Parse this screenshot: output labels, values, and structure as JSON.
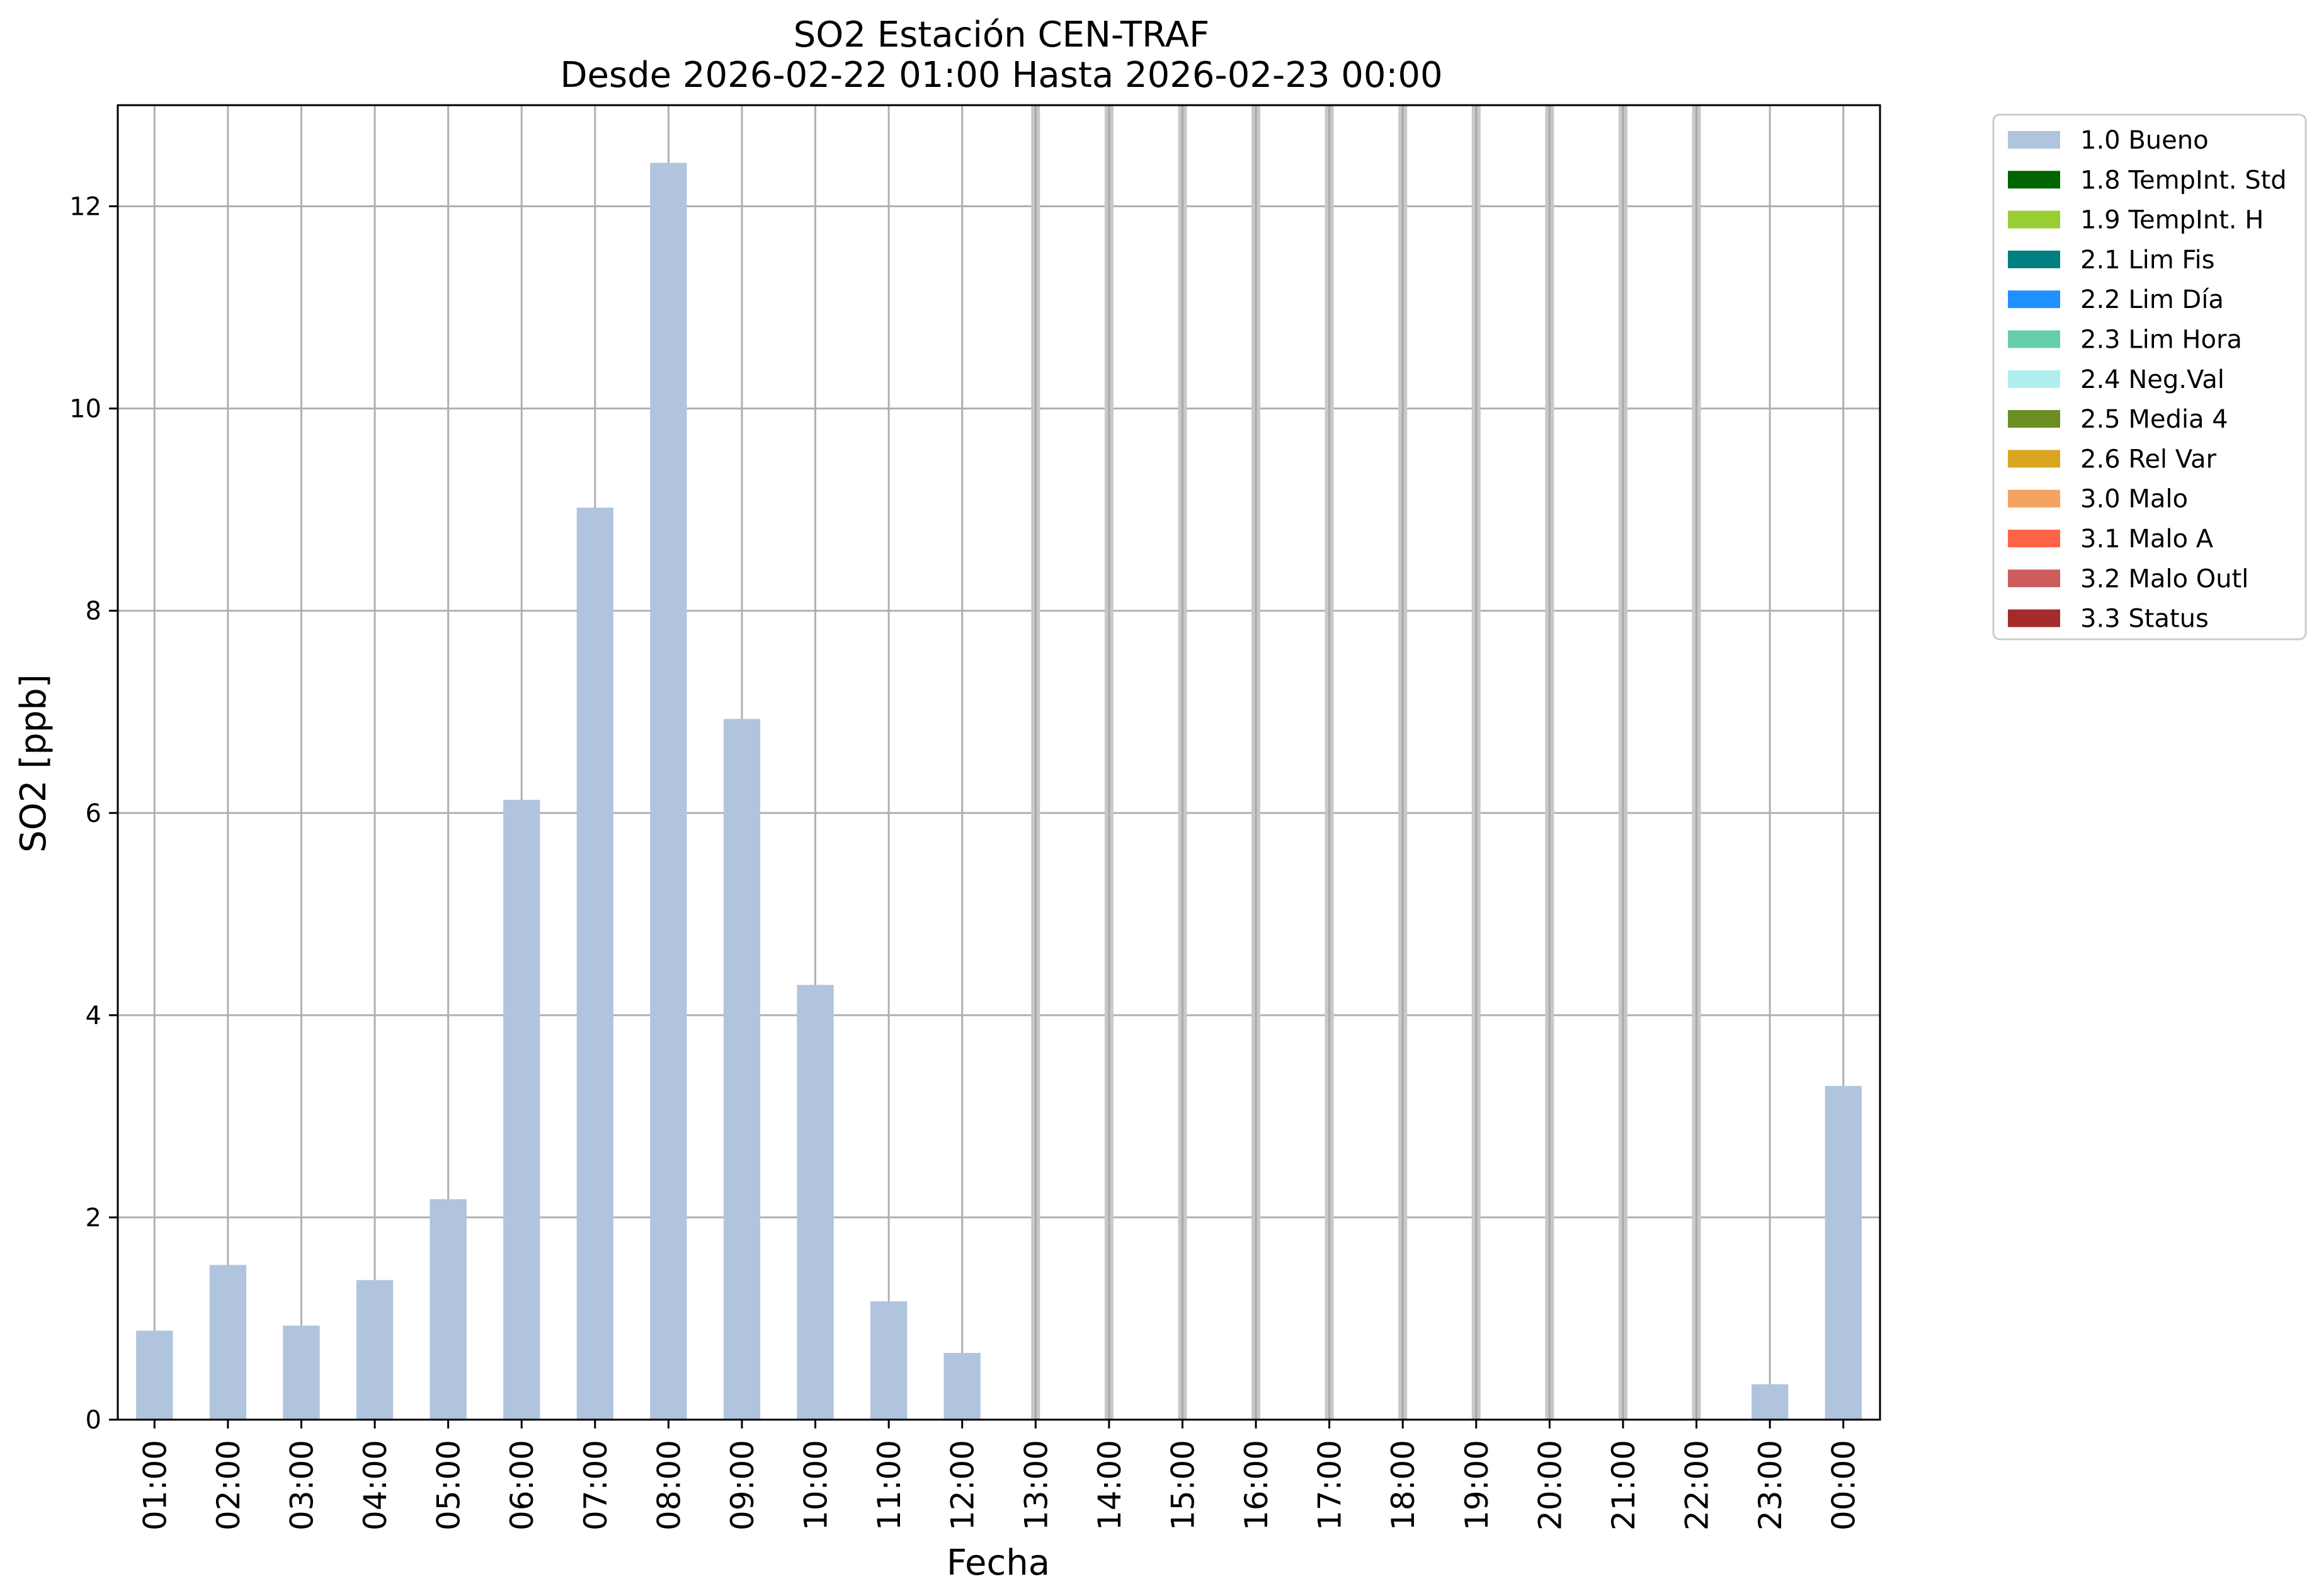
{
  "chart_data": {
    "type": "bar",
    "title": [
      "SO2 Estación CEN-TRAF",
      "Desde 2026-02-22 01:00 Hasta 2026-02-23 00:00"
    ],
    "xlabel": "Fecha",
    "ylabel": "SO2 [ppb]",
    "ylim": [
      0,
      13
    ],
    "yticks": [
      0,
      2,
      4,
      6,
      8,
      10,
      12
    ],
    "grid": true,
    "legend_position": "outside-top-right",
    "categories": [
      "01:00",
      "02:00",
      "03:00",
      "04:00",
      "05:00",
      "06:00",
      "07:00",
      "08:00",
      "09:00",
      "10:00",
      "11:00",
      "12:00",
      "13:00",
      "14:00",
      "15:00",
      "16:00",
      "17:00",
      "18:00",
      "19:00",
      "20:00",
      "21:00",
      "22:00",
      "23:00",
      "00:00"
    ],
    "values": [
      0.88,
      1.53,
      0.93,
      1.38,
      2.18,
      6.13,
      9.02,
      12.43,
      6.93,
      4.3,
      1.17,
      0.66,
      null,
      null,
      null,
      null,
      null,
      null,
      null,
      null,
      null,
      null,
      0.35,
      3.3
    ],
    "bar_color": "#b0c4de",
    "missing_marker_color": "#c8c8c8",
    "legend": [
      {
        "label": "1.0 Bueno",
        "color": "#b0c4de"
      },
      {
        "label": "1.8 TempInt. Std",
        "color": "#006400"
      },
      {
        "label": "1.9 TempInt. H",
        "color": "#9acd32"
      },
      {
        "label": "2.1 Lim Fis",
        "color": "#008080"
      },
      {
        "label": "2.2 Lim Día",
        "color": "#1e90ff"
      },
      {
        "label": "2.3 Lim Hora",
        "color": "#66cdaa"
      },
      {
        "label": "2.4 Neg.Val",
        "color": "#afeeee"
      },
      {
        "label": "2.5 Media 4",
        "color": "#6b8e23"
      },
      {
        "label": "2.6 Rel Var",
        "color": "#daa520"
      },
      {
        "label": "3.0 Malo",
        "color": "#f4a460"
      },
      {
        "label": "3.1 Malo A",
        "color": "#ff6347"
      },
      {
        "label": "3.2 Malo Outl",
        "color": "#cd5c5c"
      },
      {
        "label": "3.3 Status",
        "color": "#a52a2a"
      }
    ]
  }
}
